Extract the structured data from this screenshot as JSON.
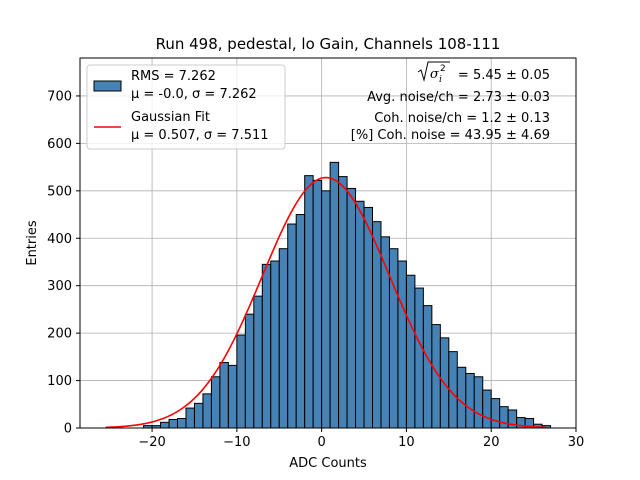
{
  "chart_data": {
    "type": "bar",
    "title": "Run 498, pedestal, lo Gain, Channels 108-111",
    "xlabel": "ADC Counts",
    "ylabel": "Entries",
    "xlim": [
      -28.5,
      30
    ],
    "ylim": [
      0,
      780
    ],
    "grid": true,
    "legend_placement": "top-left",
    "x_ticks": [
      -20,
      -10,
      0,
      10,
      20,
      30
    ],
    "y_ticks": [
      0,
      100,
      200,
      300,
      400,
      500,
      600,
      700
    ],
    "histogram": {
      "name": "RMS = 7.262",
      "name_line2": "μ = -0.0, σ = 7.262",
      "color": "#4682b4",
      "edge_color": "#000000",
      "bin_start": -21,
      "bin_width": 1,
      "values": [
        5,
        5,
        12,
        18,
        20,
        42,
        52,
        72,
        108,
        138,
        132,
        196,
        240,
        278,
        345,
        352,
        378,
        430,
        450,
        532,
        522,
        500,
        560,
        530,
        505,
        478,
        465,
        435,
        403,
        378,
        352,
        322,
        295,
        258,
        218,
        190,
        161,
        128,
        115,
        108,
        80,
        62,
        45,
        38,
        22,
        20,
        8,
        5
      ]
    },
    "fit": {
      "name": "Gaussian Fit",
      "name_line2": "μ = 0.507, σ = 7.511",
      "color": "#ff0000",
      "mu": 0.507,
      "sigma": 7.511,
      "amplitude": 528,
      "x_range": [
        -25.5,
        26.5
      ]
    },
    "stats": {
      "line1_value": " = 5.45 ± 0.05",
      "line2": "Avg. noise/ch = 2.73 ± 0.03",
      "line3": "Coh. noise/ch = 1.2 ± 0.13",
      "line4": "[%] Coh. noise = 43.95 ± 4.69"
    }
  }
}
